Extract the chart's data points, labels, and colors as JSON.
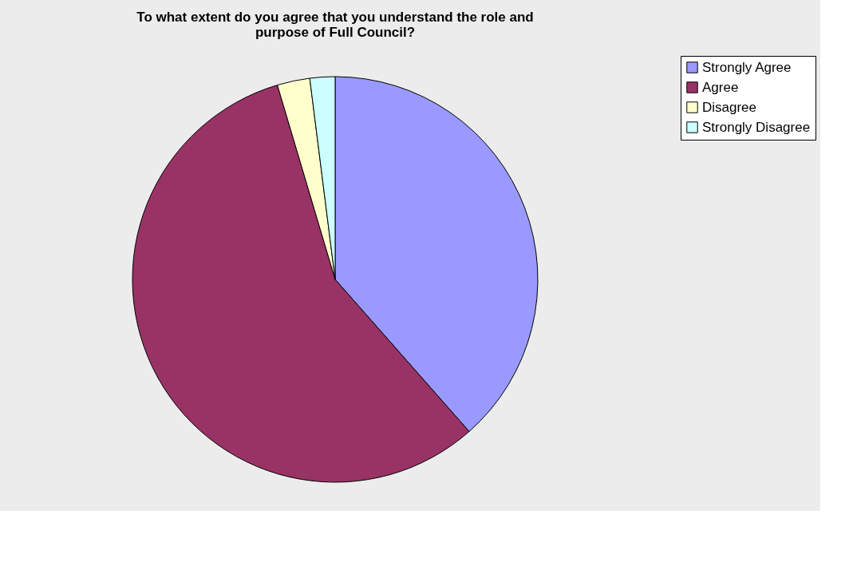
{
  "chart_data": {
    "type": "pie",
    "title": "To what extent do you agree that you understand the role and purpose of Full Council?",
    "categories": [
      "Strongly Agree",
      "Agree",
      "Disagree",
      "Strongly Disagree"
    ],
    "values": [
      38.5,
      56.9,
      2.6,
      2.0
    ],
    "colors": [
      "#9999ff",
      "#993366",
      "#ffffcc",
      "#ccffff"
    ],
    "legend": "right"
  }
}
